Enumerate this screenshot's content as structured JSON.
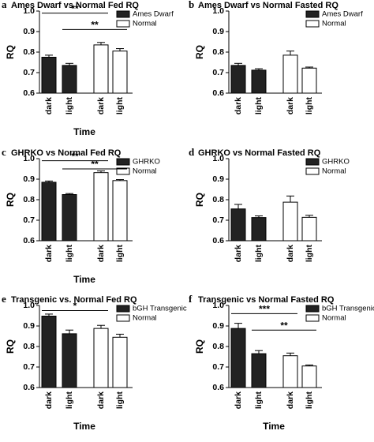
{
  "chart_data": [
    {
      "type": "bar",
      "label": "a",
      "title": "Ames Dwarf vs Normal Fed RQ",
      "xlabel": "Time",
      "ylabel": "RQ",
      "categories": [
        "dark",
        "light",
        "dark",
        "light"
      ],
      "series": [
        {
          "name": "Ames Dwarf",
          "color": "#222222",
          "values": [
            0.775,
            0.735,
            null,
            null
          ],
          "errors": [
            0.01,
            0.01,
            null,
            null
          ]
        },
        {
          "name": "Normal",
          "color": "#ffffff",
          "values": [
            null,
            null,
            0.835,
            0.805
          ],
          "errors": [
            null,
            null,
            0.012,
            0.012
          ]
        }
      ],
      "ylim": [
        0.6,
        1
      ],
      "yticks": [
        0.6,
        0.7,
        0.8,
        0.9,
        {
          "value": 1,
          "label": "1.0"
        }
      ],
      "legend": "upper right",
      "annotations": [
        {
          "text": "**"
        },
        {
          "text": "**"
        }
      ]
    },
    {
      "type": "bar",
      "label": "b",
      "title": "Ames Dwarf vs Normal Fasted RQ",
      "ylabel": "RQ",
      "categories": [
        "dark",
        "light",
        "dark",
        "light"
      ],
      "series": [
        {
          "name": "Ames Dwarf",
          "color": "#222222",
          "values": [
            0.735,
            0.712,
            null,
            null
          ],
          "errors": [
            0.01,
            0.007,
            null,
            null
          ]
        },
        {
          "name": "Normal",
          "color": "#ffffff",
          "values": [
            null,
            null,
            0.785,
            0.722
          ],
          "errors": [
            null,
            null,
            0.02,
            0.005
          ]
        }
      ],
      "ylim": [
        0.6,
        1
      ],
      "yticks": [
        0.6,
        0.7,
        0.8,
        0.9,
        {
          "value": 1,
          "label": "1.0"
        }
      ],
      "legend": "upper right",
      "annotations": []
    },
    {
      "type": "bar",
      "label": "c",
      "title": "GHRKO vs Normal Fed RQ",
      "xlabel": "Time",
      "ylabel": "RQ",
      "categories": [
        "dark",
        "light",
        "dark",
        "light"
      ],
      "series": [
        {
          "name": "GHRKO",
          "color": "#222222",
          "values": [
            0.885,
            0.825,
            null,
            null
          ],
          "errors": [
            0.006,
            0.005,
            null,
            null
          ]
        },
        {
          "name": "Normal",
          "color": "#ffffff",
          "values": [
            null,
            null,
            0.932,
            0.893
          ],
          "errors": [
            null,
            null,
            0.008,
            0.005
          ]
        }
      ],
      "ylim": [
        0.6,
        1
      ],
      "yticks": [
        0.6,
        0.7,
        0.8,
        0.9,
        {
          "value": 1,
          "label": "1.0"
        }
      ],
      "legend": "upper right",
      "annotations": [
        {
          "text": "**"
        },
        {
          "text": "**"
        }
      ]
    },
    {
      "type": "bar",
      "label": "d",
      "title": "GHRKO vs Normal Fasted RQ",
      "ylabel": "RQ",
      "categories": [
        "dark",
        "light",
        "dark",
        "light"
      ],
      "series": [
        {
          "name": "GHRKO",
          "color": "#222222",
          "values": [
            0.755,
            0.713,
            null,
            null
          ],
          "errors": [
            0.022,
            0.008,
            null,
            null
          ]
        },
        {
          "name": "Normal",
          "color": "#ffffff",
          "values": [
            null,
            null,
            0.788,
            0.714
          ],
          "errors": [
            null,
            null,
            0.03,
            0.01
          ]
        }
      ],
      "ylim": [
        0.6,
        1
      ],
      "yticks": [
        0.6,
        0.7,
        0.8,
        0.9,
        {
          "value": 1,
          "label": "1.0"
        }
      ],
      "legend": "upper right",
      "annotations": []
    },
    {
      "type": "bar",
      "label": "e",
      "title": "Transgenic vs. Normal Fed RQ",
      "xlabel": "Time",
      "ylabel": "RQ",
      "categories": [
        "dark",
        "light",
        "dark",
        "light"
      ],
      "series": [
        {
          "name": "bGH Transgenic",
          "color": "#222222",
          "values": [
            0.948,
            0.862,
            null,
            null
          ],
          "errors": [
            0.01,
            0.018,
            null,
            null
          ]
        },
        {
          "name": "Normal",
          "color": "#ffffff",
          "values": [
            null,
            null,
            0.888,
            0.845
          ],
          "errors": [
            null,
            null,
            0.015,
            0.015
          ]
        }
      ],
      "ylim": [
        0.6,
        1
      ],
      "yticks": [
        0.6,
        0.7,
        0.8,
        0.9,
        {
          "value": 1,
          "label": "1.0"
        }
      ],
      "legend": "upper right",
      "annotations": [
        {
          "text": "*"
        }
      ]
    },
    {
      "type": "bar",
      "label": "f",
      "title": "Transgenic vs Normal Fasted RQ",
      "xlabel": "Time",
      "ylabel": "RQ",
      "categories": [
        "dark",
        "light",
        "dark",
        "light"
      ],
      "series": [
        {
          "name": "bGH Transgenic",
          "color": "#222222",
          "values": [
            0.888,
            0.765,
            null,
            null
          ],
          "errors": [
            0.025,
            0.015,
            null,
            null
          ]
        },
        {
          "name": "Normal",
          "color": "#ffffff",
          "values": [
            null,
            null,
            0.755,
            0.705
          ],
          "errors": [
            null,
            null,
            0.013,
            0.005
          ]
        }
      ],
      "ylim": [
        0.6,
        1
      ],
      "yticks": [
        0.6,
        0.7,
        0.8,
        0.9,
        {
          "value": 1,
          "label": "1.0"
        }
      ],
      "legend": "upper right",
      "annotations": [
        {
          "text": "***"
        },
        {
          "text": "**"
        }
      ]
    }
  ]
}
